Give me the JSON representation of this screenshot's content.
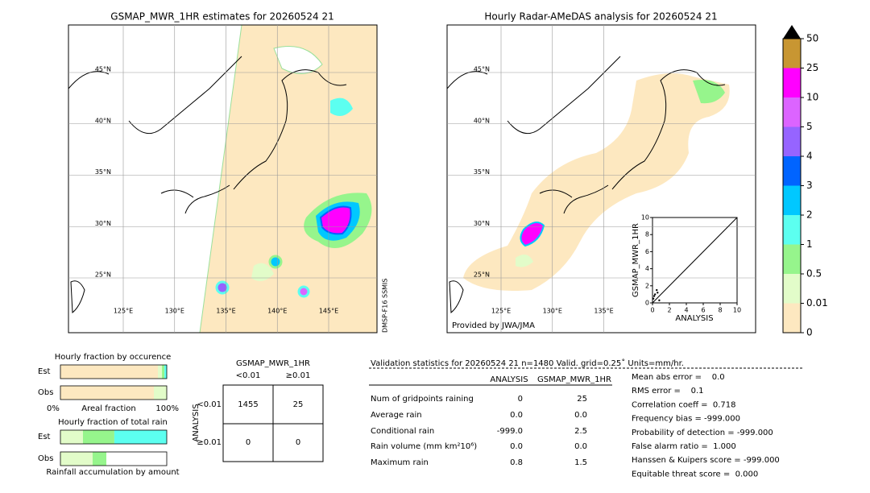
{
  "maps": [
    {
      "title": "GSMAP_MWR_1HR estimates for 20260524 21",
      "lon_ticks": [
        {
          "value": 125,
          "label": "125°E"
        },
        {
          "value": 130,
          "label": "130°E"
        },
        {
          "value": 135,
          "label": "135°E"
        },
        {
          "value": 140,
          "label": "140°E"
        },
        {
          "value": 145,
          "label": "145°E"
        }
      ],
      "lat_ticks": [
        {
          "value": 45,
          "label": "45°N"
        },
        {
          "value": 40,
          "label": "40°N"
        },
        {
          "value": 35,
          "label": "35°N"
        },
        {
          "value": 30,
          "label": "30°N"
        },
        {
          "value": 25,
          "label": "25°N"
        }
      ],
      "satellite": "DMSP-F16 SSMIS"
    },
    {
      "title": "Hourly Radar-AMeDAS analysis for 20260524 21",
      "lon_ticks": [
        {
          "value": 125,
          "label": "125°E"
        },
        {
          "value": 130,
          "label": "130°E"
        },
        {
          "value": 135,
          "label": "135°E"
        }
      ],
      "lat_ticks": [
        {
          "value": 45,
          "label": "45°N"
        },
        {
          "value": 40,
          "label": "40°N"
        },
        {
          "value": 35,
          "label": "35°N"
        },
        {
          "value": 30,
          "label": "30°N"
        },
        {
          "value": 25,
          "label": "25°N"
        }
      ],
      "credit": "Provided by JWA/JMA"
    }
  ],
  "inset": {
    "type": "scatter",
    "x_label": "ANALYSIS",
    "y_label": "GSMAP_MWR_1HR",
    "xlim": [
      0,
      10
    ],
    "ylim": [
      0,
      10
    ],
    "xticks": [
      0,
      2,
      4,
      6,
      8,
      10
    ],
    "yticks": [
      0,
      2,
      4,
      6,
      8,
      10
    ],
    "x": [
      0.1,
      0.3,
      0.5,
      0.8,
      0.2,
      0.6
    ],
    "y": [
      0.5,
      1.0,
      1.5,
      0.3,
      0.8,
      1.2
    ]
  },
  "colorbar": {
    "levels": [
      0,
      0.01,
      0.5,
      1,
      2,
      3,
      4,
      5,
      10,
      25,
      50
    ],
    "colors": [
      "#fde8c0",
      "#e2fcc9",
      "#96f58c",
      "#5cfff0",
      "#00c8ff",
      "#0064ff",
      "#9664ff",
      "#dc64ff",
      "#ff00ff",
      "#c89632"
    ]
  },
  "occurrence": {
    "title": "Hourly fraction by occurence",
    "rows": [
      "Est",
      "Obs"
    ],
    "values": [
      [
        91.7,
        3.8,
        2.3,
        2.3
      ],
      [
        87.9,
        12.1
      ]
    ],
    "axis_labels": [
      "0%",
      "Areal fraction",
      "100%"
    ]
  },
  "total_rain": {
    "title": "Hourly fraction of total rain",
    "rows": [
      "Est",
      "Obs"
    ],
    "values": [
      [
        21.2,
        29.5,
        49.2
      ],
      [
        30.3,
        12.9
      ]
    ],
    "footer": "Rainfall accumulation by amount"
  },
  "contingency": {
    "title": "GSMAP_MWR_1HR",
    "col_labels": [
      "<0.01",
      "≥0.01"
    ],
    "row_title": "ANALYSIS",
    "row_labels": [
      "<0.01",
      "≥0.01"
    ],
    "cells": [
      [
        "1455",
        "25"
      ],
      [
        "0",
        "0"
      ]
    ]
  },
  "validation": {
    "header": "Validation statistics for 20260524 21  n=1480 Valid. grid=0.25˚ Units=mm/hr.",
    "columns": [
      "ANALYSIS",
      "GSMAP_MWR_1HR"
    ],
    "rows": [
      {
        "label": "Num of gridpoints raining",
        "analysis": "0",
        "gsmap": "25"
      },
      {
        "label": "Average rain",
        "analysis": "0.0",
        "gsmap": "0.0"
      },
      {
        "label": "Conditional rain",
        "analysis": "-999.0",
        "gsmap": "2.5"
      },
      {
        "label": "Rain volume (mm km²10⁶)",
        "analysis": "0.0",
        "gsmap": "0.0"
      },
      {
        "label": "Maximum rain",
        "analysis": "0.8",
        "gsmap": "1.5"
      }
    ],
    "scores": [
      "Mean abs error =    0.0",
      "RMS error =    0.1",
      "Correlation coeff =  0.718",
      "Frequency bias = -999.000",
      "Probability of detection = -999.000",
      "False alarm ratio =  1.000",
      "Hanssen & Kuipers score = -999.000",
      "Equitable threat score =  0.000"
    ]
  }
}
